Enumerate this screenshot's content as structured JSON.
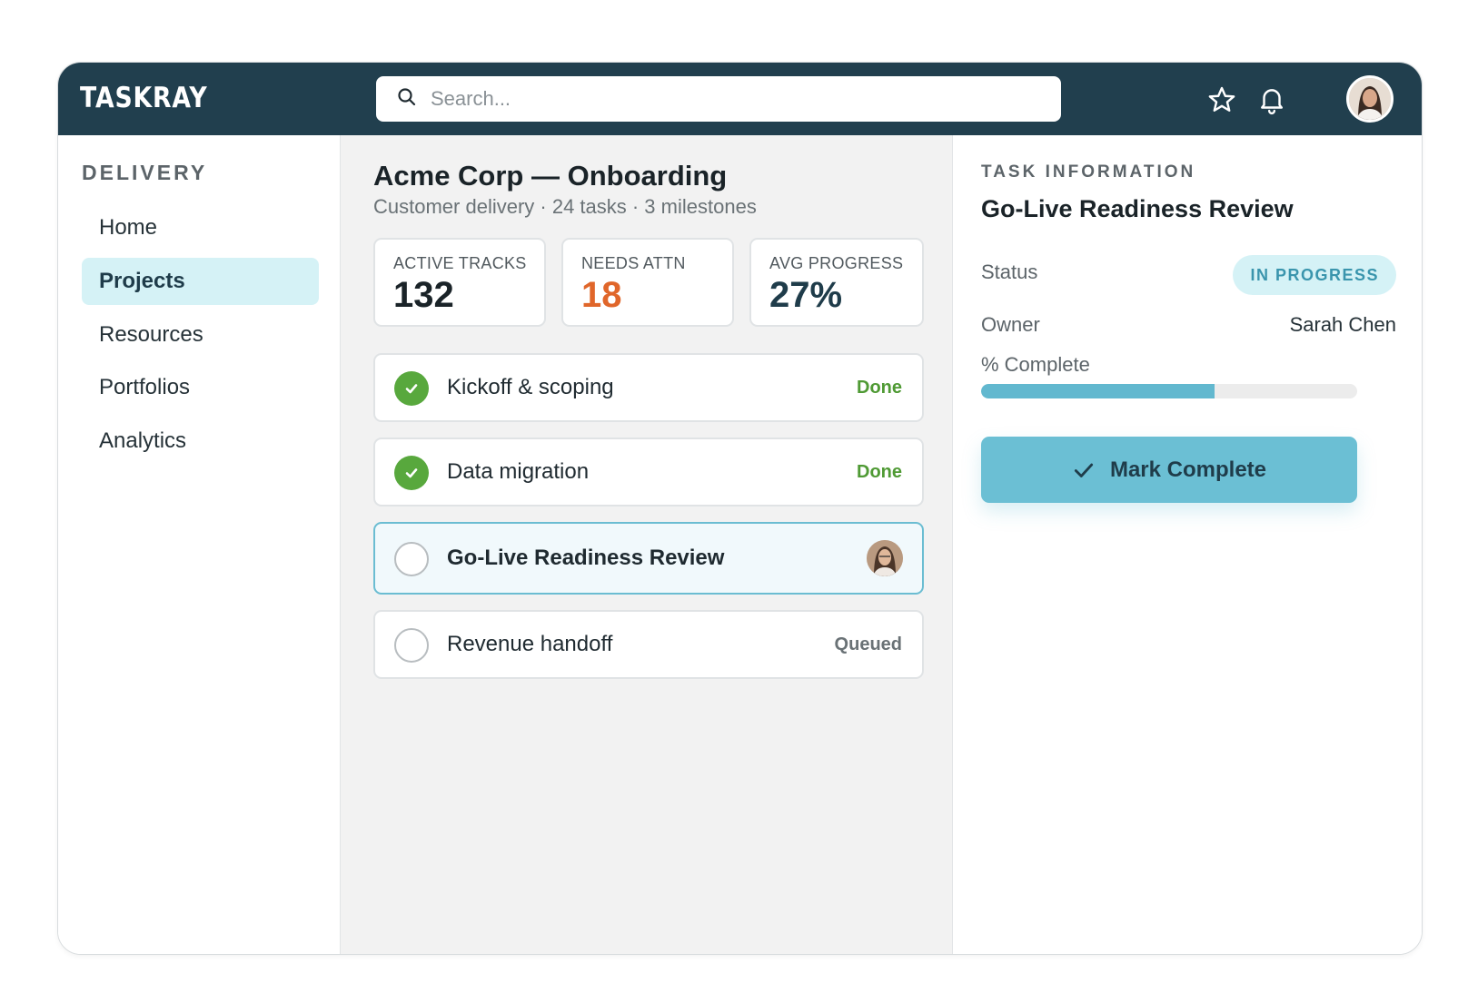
{
  "app": {
    "logo": "TASKRAY"
  },
  "search": {
    "placeholder": "Search..."
  },
  "header_icons": [
    "star-icon",
    "bell-icon",
    "user-avatar"
  ],
  "sidebar": {
    "heading": "DELIVERY",
    "items": [
      {
        "label": "Home",
        "active": false
      },
      {
        "label": "Projects",
        "active": true
      },
      {
        "label": "Resources",
        "active": false
      },
      {
        "label": "Portfolios",
        "active": false
      },
      {
        "label": "Analytics",
        "active": false
      }
    ]
  },
  "project": {
    "title": "Acme Corp — Onboarding",
    "subtitle": "Customer delivery · 24 tasks · 3 milestones"
  },
  "stats": [
    {
      "label": "ACTIVE TRACKS",
      "value": "132",
      "color": "#1a2328"
    },
    {
      "label": "NEEDS ATTN",
      "value": "18",
      "color": "#e0662a"
    },
    {
      "label": "AVG PROGRESS",
      "value": "27%",
      "color": "#1f3c4a"
    }
  ],
  "tasks": [
    {
      "title": "Kickoff & scoping",
      "status": "Done",
      "state": "done"
    },
    {
      "title": "Data migration",
      "status": "Done",
      "state": "done"
    },
    {
      "title": "Go-Live Readiness Review",
      "status": "",
      "state": "selected"
    },
    {
      "title": "Revenue handoff",
      "status": "Queued",
      "state": "queued"
    }
  ],
  "detail": {
    "heading": "TASK INFORMATION",
    "title": "Go-Live Readiness Review",
    "status_label": "Status",
    "status_value": "IN PROGRESS",
    "owner_label": "Owner",
    "owner_value": "Sarah Chen",
    "complete_label": "% Complete",
    "complete_fraction": 0.62,
    "button_label": "Mark Complete"
  },
  "colors": {
    "header_bg": "#213f4e",
    "accent": "#6bbfd4",
    "done_green": "#58a83d",
    "attention_orange": "#e0662a"
  }
}
